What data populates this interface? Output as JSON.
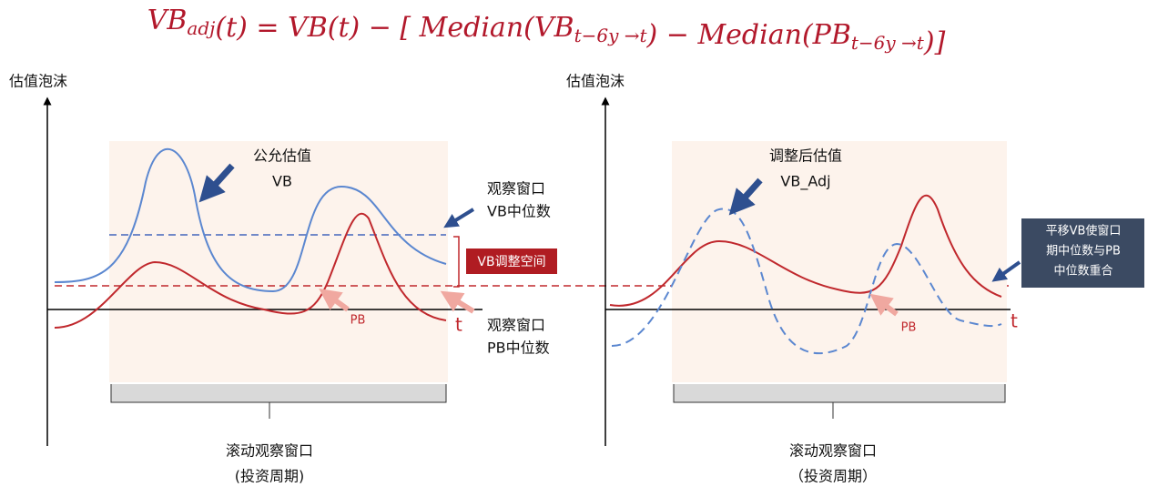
{
  "formula": {
    "segments": [
      {
        "text": "VB",
        "sub": "adj"
      },
      {
        "text": "(t) = VB(t) − [ Median(VB",
        "sub": "t−6y →t"
      },
      {
        "text": ") − Median(PB",
        "sub": "t−6y →t"
      },
      {
        "text": ")]"
      }
    ]
  },
  "left_panel": {
    "y_axis_label": "估值泡沫",
    "vb_title": "公允估值",
    "vb_label": "VB",
    "vb_median_line1": "观察窗口",
    "vb_median_line2": "VB中位数",
    "adjust_box": "VB调整空间",
    "pb_label": "PB",
    "t_label": "t",
    "pb_median_line1": "观察窗口",
    "pb_median_line2": "PB中位数",
    "window_line1": "滚动观察窗口",
    "window_line2": "(投资周期)"
  },
  "right_panel": {
    "y_axis_label": "估值泡沫",
    "vb_title": "调整后估值",
    "vb_label": "VB_Adj",
    "note_lines": [
      "平移VB使窗口",
      "期中位数与PB",
      "中位数重合"
    ],
    "pb_label": "PB",
    "t_label": "t",
    "window_line1": "滚动观察窗口",
    "window_line2": "（投资周期）"
  }
}
